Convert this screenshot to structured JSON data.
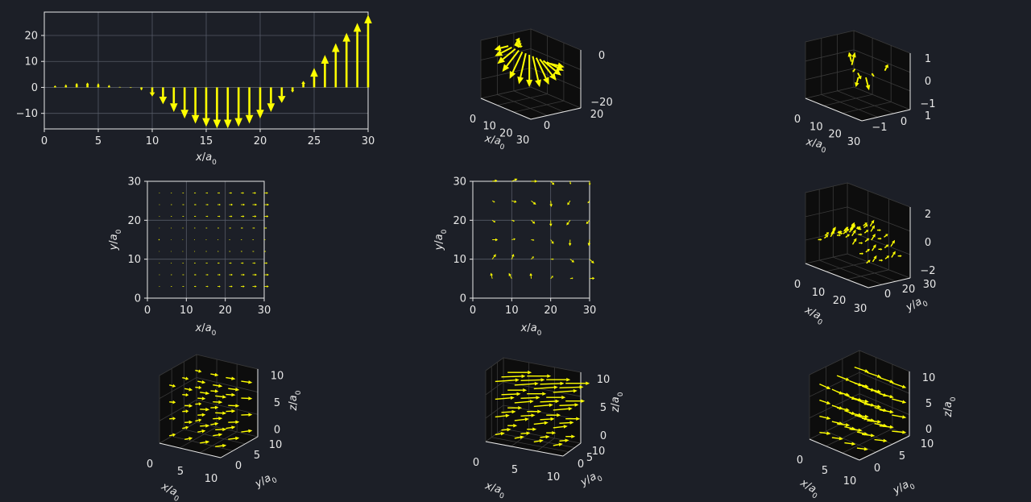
{
  "colors": {
    "background": "#1c1f27",
    "arrow": "#ffff00",
    "axis": "#e8e8e8",
    "grid": "#555a66",
    "pane": "#0d0d0d",
    "pane_edge": "#3a3a3a"
  },
  "chart_data": [
    {
      "type": "quiver",
      "dims": 2,
      "view": "x-vs-component",
      "xlabel_var": "x",
      "xlabel_sub": "0",
      "xlim": [
        0,
        30
      ],
      "ylim": [
        -16,
        29
      ],
      "xticks": [
        "0",
        "5",
        "10",
        "15",
        "20",
        "25",
        "30"
      ],
      "yticks": [
        "−10",
        "0",
        "10",
        "20"
      ],
      "xtick_values": [
        0,
        5,
        10,
        15,
        20,
        25,
        30
      ],
      "ytick_values": [
        -10,
        0,
        10,
        20
      ],
      "grid": true,
      "x": [
        1,
        2,
        3,
        4,
        5,
        6,
        7,
        8,
        9,
        10,
        11,
        12,
        13,
        14,
        15,
        16,
        17,
        18,
        19,
        20,
        21,
        22,
        23,
        24,
        25,
        26,
        27,
        28,
        29,
        30
      ],
      "values": [
        0.8,
        1.2,
        1.7,
        1.9,
        1.6,
        1.0,
        0.3,
        -0.3,
        -1.2,
        -3.5,
        -6.5,
        -9.5,
        -12.0,
        -14.0,
        -15.2,
        -15.8,
        -15.8,
        -15.2,
        -14.0,
        -12.0,
        -9.5,
        -6.0,
        -2.0,
        2.5,
        7.5,
        12.5,
        17.0,
        21.0,
        24.8,
        28.0
      ]
    },
    {
      "type": "quiver3d",
      "xticks": [
        "0",
        "10",
        "20",
        "30"
      ],
      "yticks": [
        "0",
        "20"
      ],
      "zticks": [
        "−20",
        "0"
      ],
      "xlabel_var": "x",
      "xlabel_sub": "0"
    },
    {
      "type": "quiver3d",
      "xticks": [
        "0",
        "10",
        "20",
        "30"
      ],
      "yticks": [
        "−1",
        "0",
        "1"
      ],
      "zticks": [
        "−1",
        "0",
        "1"
      ],
      "xlabel_var": "x",
      "xlabel_sub": "0"
    },
    {
      "type": "quiver",
      "dims": 2,
      "xlim": [
        0,
        30
      ],
      "ylim": [
        0,
        30
      ],
      "xticks": [
        "0",
        "10",
        "20",
        "30"
      ],
      "yticks": [
        "0",
        "10",
        "20",
        "30"
      ],
      "xtick_values": [
        0,
        10,
        20,
        30
      ],
      "ytick_values": [
        0,
        10,
        20,
        30
      ],
      "grid": true,
      "xlabel_var": "x",
      "xlabel_sub": "0",
      "ylabel_var": "y",
      "ylabel_sub": "0"
    },
    {
      "type": "quiver",
      "dims": 2,
      "xlim": [
        0,
        30
      ],
      "ylim": [
        0,
        30
      ],
      "xticks": [
        "0",
        "10",
        "20",
        "30"
      ],
      "yticks": [
        "0",
        "10",
        "20",
        "30"
      ],
      "xtick_values": [
        0,
        10,
        20,
        30
      ],
      "ytick_values": [
        0,
        10,
        20,
        30
      ],
      "grid": true,
      "xlabel_var": "x",
      "xlabel_sub": "0",
      "ylabel_var": "y",
      "ylabel_sub": "0"
    },
    {
      "type": "quiver3d",
      "xticks": [
        "0",
        "10",
        "20",
        "30"
      ],
      "yticks": [
        "0",
        "20",
        "30"
      ],
      "zticks": [
        "−2",
        "0",
        "2"
      ],
      "xlabel_var": "x",
      "xlabel_sub": "0",
      "ylabel_var": "y",
      "ylabel_sub": "0"
    },
    {
      "type": "quiver3d",
      "xticks": [
        "0",
        "5",
        "10"
      ],
      "yticks": [
        "0",
        "5",
        "10"
      ],
      "zticks": [
        "0",
        "5",
        "10"
      ],
      "xlabel_var": "x",
      "xlabel_sub": "0",
      "ylabel_var": "y",
      "ylabel_sub": "0",
      "zlabel_var": "z",
      "zlabel_sub": "0"
    },
    {
      "type": "quiver3d",
      "xticks": [
        "0",
        "5",
        "10"
      ],
      "yticks": [
        "0",
        "5",
        "10"
      ],
      "zticks": [
        "0",
        "5",
        "10"
      ],
      "xlabel_var": "x",
      "xlabel_sub": "0",
      "ylabel_var": "y",
      "ylabel_sub": "0",
      "zlabel_var": "z",
      "zlabel_sub": "0"
    },
    {
      "type": "quiver3d",
      "xticks": [
        "0",
        "5",
        "10"
      ],
      "yticks": [
        "0",
        "5",
        "10"
      ],
      "zticks": [
        "0",
        "5",
        "10"
      ],
      "xlabel_var": "x",
      "xlabel_sub": "0",
      "ylabel_var": "y",
      "ylabel_sub": "0",
      "zlabel_var": "z",
      "zlabel_sub": "0"
    }
  ]
}
